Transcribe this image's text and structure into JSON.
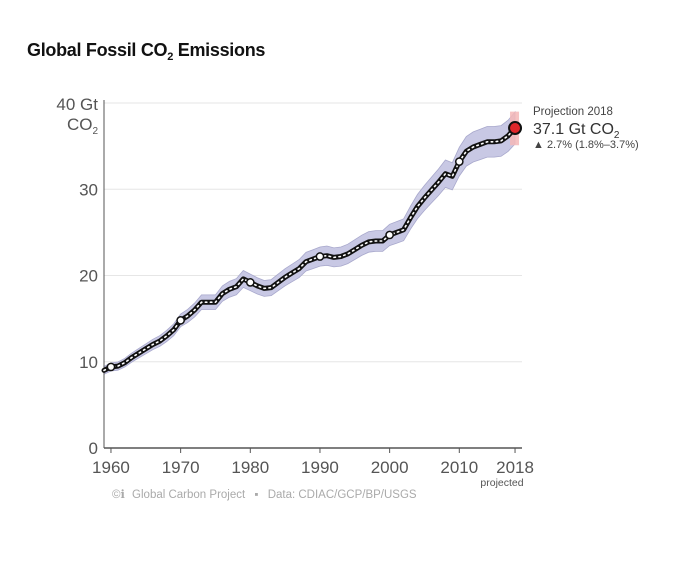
{
  "title": {
    "prefix": "Global Fossil CO",
    "subscript": "2",
    "suffix": " Emissions"
  },
  "axes": {
    "y_unit_line1": "40 Gt",
    "y_unit_line2_main": "CO",
    "y_unit_line2_sub": "2",
    "y_ticks": [
      {
        "value": 0,
        "label": "0"
      },
      {
        "value": 10,
        "label": "10"
      },
      {
        "value": 20,
        "label": "20"
      },
      {
        "value": 30,
        "label": "30"
      }
    ],
    "x_ticks": [
      {
        "value": 1960,
        "label": "1960"
      },
      {
        "value": 1970,
        "label": "1970"
      },
      {
        "value": 1980,
        "label": "1980"
      },
      {
        "value": 1990,
        "label": "1990"
      },
      {
        "value": 2000,
        "label": "2000"
      },
      {
        "value": 2010,
        "label": "2010"
      },
      {
        "value": 2018,
        "label": "2018"
      }
    ],
    "x_sublabel": "projected"
  },
  "projection": {
    "heading": "Projection 2018",
    "value_main": "37.1 Gt CO",
    "value_sub": "2",
    "change": "▲ 2.7% (1.8%–3.7%)"
  },
  "credit": {
    "cc": "©ℹ",
    "org": "Global Carbon Project",
    "separator": "▪",
    "source": "Data: CDIAC/GCP/BP/USGS"
  },
  "colors": {
    "line": "#111111",
    "band": "#c8c8e4",
    "band_edge": "#a8a8cc",
    "projection_band": "#f4b7b7",
    "projection_point": "#e0262a",
    "grid": "#e6e6e6",
    "axis": "#555555"
  },
  "chart_data": {
    "type": "line",
    "title": "Global Fossil CO2 Emissions",
    "ylabel": "Gt CO2",
    "xlim": [
      1959,
      2019
    ],
    "ylim": [
      0,
      40
    ],
    "grid": "horizontal",
    "uncertainty_band": "±5%",
    "series": [
      {
        "x": [
          1959,
          1960,
          1961,
          1962,
          1963,
          1964,
          1965,
          1966,
          1967,
          1968,
          1969,
          1970,
          1971,
          1972,
          1973,
          1974,
          1975,
          1976,
          1977,
          1978,
          1979,
          1980,
          1981,
          1982,
          1983,
          1984,
          1985,
          1986,
          1987,
          1988,
          1989,
          1990,
          1991,
          1992,
          1993,
          1994,
          1995,
          1996,
          1997,
          1998,
          1999,
          2000,
          2001,
          2002,
          2003,
          2004,
          2005,
          2006,
          2007,
          2008,
          2009,
          2010,
          2011,
          2012,
          2013,
          2014,
          2015,
          2016,
          2017,
          2018
        ],
        "y": [
          9.0,
          9.4,
          9.5,
          9.9,
          10.5,
          11.0,
          11.5,
          12.0,
          12.4,
          13.0,
          13.7,
          14.8,
          15.3,
          16.0,
          16.9,
          16.9,
          16.9,
          17.9,
          18.4,
          18.7,
          19.6,
          19.2,
          18.8,
          18.5,
          18.6,
          19.2,
          19.8,
          20.3,
          20.8,
          21.6,
          21.9,
          22.2,
          22.3,
          22.1,
          22.2,
          22.5,
          23.0,
          23.5,
          23.9,
          24.0,
          24.0,
          24.7,
          25.0,
          25.3,
          26.7,
          28.0,
          29.0,
          29.9,
          30.8,
          31.8,
          31.5,
          33.2,
          34.4,
          34.9,
          35.2,
          35.5,
          35.5,
          35.6,
          36.2,
          37.1
        ]
      }
    ],
    "hollow_points": [
      {
        "x": 1960,
        "y": 9.4
      },
      {
        "x": 1970,
        "y": 14.8
      },
      {
        "x": 1980,
        "y": 19.2
      },
      {
        "x": 1990,
        "y": 22.2
      },
      {
        "x": 2000,
        "y": 24.7
      },
      {
        "x": 2010,
        "y": 33.2
      }
    ],
    "projection_point": {
      "x": 2018,
      "y": 37.1,
      "low": 36.8,
      "high": 37.5
    },
    "projection_band": {
      "x": 2018,
      "low": 35.1,
      "high": 39.0
    }
  }
}
